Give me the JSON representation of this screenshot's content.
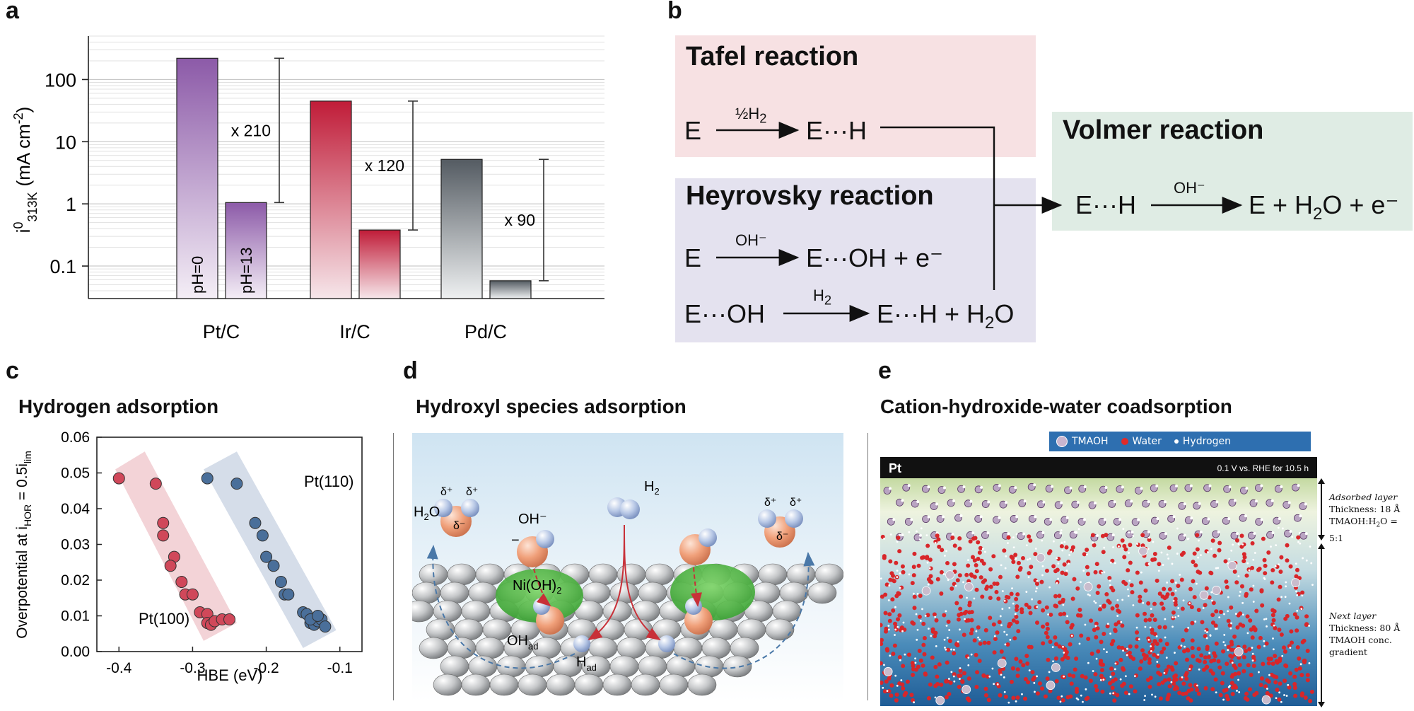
{
  "panels": {
    "a": {
      "label": "a"
    },
    "b": {
      "label": "b"
    },
    "c": {
      "label": "c",
      "title": "Hydrogen adsorption"
    },
    "d": {
      "label": "d",
      "title": "Hydroxyl species adsorption"
    },
    "e": {
      "label": "e",
      "title": "Cation-hydroxide-water coadsorption"
    }
  },
  "chart_data": [
    {
      "panel": "a",
      "type": "bar",
      "ylabel_main": "i",
      "ylabel_sup": "0",
      "ylabel_sub": "313K",
      "ylabel_unit": "(mA cm",
      "ylabel_unit_sup": "-2",
      "ylabel_close": ")",
      "yscale": "log",
      "ylim": [
        0.03,
        500
      ],
      "yticks": [
        {
          "value": 100,
          "label": "100"
        },
        {
          "value": 10,
          "label": "10"
        },
        {
          "value": 1,
          "label": "1"
        },
        {
          "value": 0.1,
          "label": "0.1"
        }
      ],
      "categories": [
        "Pt/C",
        "Ir/C",
        "Pd/C"
      ],
      "series": [
        {
          "name": "pH=0",
          "values": [
            220,
            45,
            5.2
          ]
        },
        {
          "name": "pH=13",
          "values": [
            1.05,
            0.38,
            0.058
          ]
        }
      ],
      "ratios": [
        "x 210",
        "x 120",
        "x 90"
      ],
      "colors": {
        "pt": "#8a5aa6",
        "ir": "#c0203a",
        "pd": "#5a6068"
      }
    },
    {
      "panel": "c",
      "type": "scatter",
      "xlabel": "HBE (eV)",
      "ylabel_main": "Overpotential at i",
      "ylabel_sub": "HOR",
      "ylabel_mid": " = 0.5i",
      "ylabel_sub2": "lim",
      "xlim": [
        -0.43,
        -0.07
      ],
      "ylim": [
        0,
        0.06
      ],
      "xticks": [
        -0.4,
        -0.3,
        -0.2,
        -0.1
      ],
      "xtick_labels": [
        "-0.4",
        "-0.3",
        "-0.2",
        "-0.1"
      ],
      "yticks": [
        0,
        0.01,
        0.02,
        0.03,
        0.04,
        0.05,
        0.06
      ],
      "ytick_labels": [
        "0.00",
        "0.01",
        "0.02",
        "0.03",
        "0.04",
        "0.05",
        "0.06"
      ],
      "series": [
        {
          "name": "Pt(100)",
          "color": "#d0485a",
          "x": [
            -0.4,
            -0.35,
            -0.34,
            -0.34,
            -0.325,
            -0.33,
            -0.315,
            -0.31,
            -0.3,
            -0.29,
            -0.28,
            -0.28,
            -0.275,
            -0.27,
            -0.26,
            -0.25
          ],
          "y": [
            0.0485,
            0.047,
            0.036,
            0.0325,
            0.0265,
            0.024,
            0.0195,
            0.016,
            0.016,
            0.011,
            0.0105,
            0.008,
            0.0075,
            0.0085,
            0.009,
            0.009
          ]
        },
        {
          "name": "Pt(110)",
          "color": "#4a6f9a",
          "x": [
            -0.28,
            -0.24,
            -0.215,
            -0.205,
            -0.2,
            -0.19,
            -0.18,
            -0.175,
            -0.17,
            -0.15,
            -0.145,
            -0.14,
            -0.135,
            -0.13,
            -0.125,
            -0.12,
            -0.14,
            -0.13
          ],
          "y": [
            0.0485,
            0.047,
            0.036,
            0.0325,
            0.0265,
            0.024,
            0.0195,
            0.016,
            0.016,
            0.011,
            0.0105,
            0.008,
            0.0075,
            0.0085,
            0.009,
            0.007,
            0.009,
            0.01
          ]
        }
      ]
    }
  ],
  "reactions": {
    "tafel": {
      "title": "Tafel reaction",
      "reactant": "E",
      "arrow_label": "½H",
      "arrow_sub": "2",
      "product": "E···H"
    },
    "heyrovsky": {
      "title": "Heyrovsky reaction",
      "eq1_reactant": "E",
      "eq1_arrow": "OH⁻",
      "eq1_product": "E···OH + e⁻",
      "eq2_reactant": "E···OH",
      "eq2_arrow": "H",
      "eq2_arrow_sub": "2",
      "eq2_product_a": "E···H + H",
      "eq2_product_sub": "2",
      "eq2_product_b": "O"
    },
    "volmer": {
      "title": "Volmer reaction",
      "reactant": "E···H",
      "arrow_label": "OH⁻",
      "product_a": "E + H",
      "product_sub": "2",
      "product_b": "O + e⁻"
    },
    "colors": {
      "tafel": "#f7e1e3",
      "heyrovsky": "#e4e2ef",
      "volmer": "#dfece4"
    }
  },
  "panel_d": {
    "h2": "H",
    "h2_sub": "2",
    "h2o": "H",
    "h2o_sub": "2",
    "h2o_end": "O",
    "oh": "OH⁻",
    "minus": "−",
    "delta_plus": "δ⁺",
    "delta_minus": "δ⁻",
    "nioh": "Ni(OH)",
    "nioh_sub": "2",
    "ohad": "OH",
    "ohad_sub": "ad",
    "had": "H",
    "had_sub": "ad"
  },
  "panel_e": {
    "legend": [
      "TMAOH",
      "Water",
      "Hydrogen"
    ],
    "surface": "Pt",
    "condition": "0.1 V vs. RHE for 10.5 h",
    "adsorbed_title": "Adsorbed layer",
    "adsorbed_l1": "Thickness: 18 Å",
    "adsorbed_l2a": "TMAOH:H",
    "adsorbed_l2sub": "2",
    "adsorbed_l2b": "O = 5:1",
    "next_title": "Next layer",
    "next_l1": "Thickness: 80 Å",
    "next_l2": "TMAOH conc.",
    "next_l3": "gradient"
  }
}
